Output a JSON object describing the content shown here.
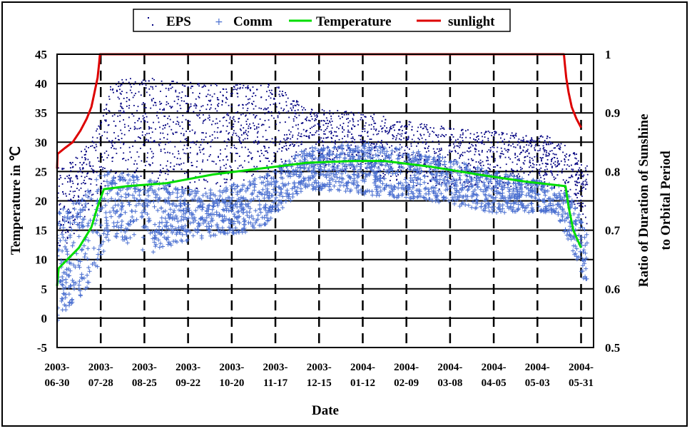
{
  "chart_data": {
    "type": "scatter",
    "xlabel": "Date",
    "ylabel_left": "Temperature in ℃",
    "ylabel_right_line1": "Ratio of Duration of Sunshine",
    "ylabel_right_line2": "to Orbital Period",
    "ylim_left": [
      -5,
      45
    ],
    "ylim_right": [
      0.5,
      1.0
    ],
    "yticks_left": [
      -5,
      0,
      5,
      10,
      15,
      20,
      25,
      30,
      35,
      40,
      45
    ],
    "yticks_right": [
      "0.5",
      "0.6",
      "0.7",
      "0.8",
      "0.9",
      "1"
    ],
    "x_start": "2003-06-30",
    "x_end": "2004-06-08",
    "xticks": [
      {
        "line1": "2003-",
        "line2": "06-30",
        "day": 0
      },
      {
        "line1": "2003-",
        "line2": "07-28",
        "day": 28
      },
      {
        "line1": "2003-",
        "line2": "08-25",
        "day": 56
      },
      {
        "line1": "2003-",
        "line2": "09-22",
        "day": 84
      },
      {
        "line1": "2003-",
        "line2": "10-20",
        "day": 112
      },
      {
        "line1": "2003-",
        "line2": "11-17",
        "day": 140
      },
      {
        "line1": "2003-",
        "line2": "12-15",
        "day": 168
      },
      {
        "line1": "2004-",
        "line2": "01-12",
        "day": 196
      },
      {
        "line1": "2004-",
        "line2": "02-09",
        "day": 224
      },
      {
        "line1": "2004-",
        "line2": "03-08",
        "day": 252
      },
      {
        "line1": "2004-",
        "line2": "04-05",
        "day": 280
      },
      {
        "line1": "2004-",
        "line2": "05-03",
        "day": 308
      },
      {
        "line1": "2004-",
        "line2": "05-31",
        "day": 336
      }
    ],
    "grid": true,
    "legend_position": "top-center",
    "series": [
      {
        "name": "EPS",
        "kind": "scatter-dots",
        "color": "#000080",
        "envelope": [
          {
            "day": 0,
            "low": 10,
            "high": 26
          },
          {
            "day": 10,
            "low": 14,
            "high": 27
          },
          {
            "day": 20,
            "low": 18,
            "high": 30
          },
          {
            "day": 28,
            "low": 20,
            "high": 34
          },
          {
            "day": 35,
            "low": 24,
            "high": 41
          },
          {
            "day": 60,
            "low": 22,
            "high": 41
          },
          {
            "day": 100,
            "low": 22,
            "high": 40
          },
          {
            "day": 140,
            "low": 24,
            "high": 40
          },
          {
            "day": 160,
            "low": 26,
            "high": 36
          },
          {
            "day": 200,
            "low": 24,
            "high": 35
          },
          {
            "day": 240,
            "low": 22,
            "high": 33
          },
          {
            "day": 280,
            "low": 22,
            "high": 32
          },
          {
            "day": 320,
            "low": 22,
            "high": 31
          },
          {
            "day": 333,
            "low": 18,
            "high": 28
          },
          {
            "day": 340,
            "low": 16,
            "high": 26
          }
        ]
      },
      {
        "name": "Comm",
        "kind": "scatter-plus",
        "color": "#4a6fd0",
        "envelope": [
          {
            "day": 0,
            "low": -1,
            "high": 18
          },
          {
            "day": 10,
            "low": 2,
            "high": 20
          },
          {
            "day": 20,
            "low": 5,
            "high": 22
          },
          {
            "day": 28,
            "low": 10,
            "high": 25
          },
          {
            "day": 35,
            "low": 14,
            "high": 25
          },
          {
            "day": 60,
            "low": 11,
            "high": 24
          },
          {
            "day": 80,
            "low": 13,
            "high": 22
          },
          {
            "day": 100,
            "low": 14,
            "high": 22
          },
          {
            "day": 130,
            "low": 15,
            "high": 24
          },
          {
            "day": 160,
            "low": 22,
            "high": 29
          },
          {
            "day": 200,
            "low": 21,
            "high": 30
          },
          {
            "day": 240,
            "low": 20,
            "high": 28
          },
          {
            "day": 280,
            "low": 18,
            "high": 25
          },
          {
            "day": 320,
            "low": 18,
            "high": 23
          },
          {
            "day": 333,
            "low": 10,
            "high": 20
          },
          {
            "day": 340,
            "low": 5,
            "high": 14
          }
        ]
      },
      {
        "name": "Temperature",
        "kind": "line",
        "axis": "left",
        "color": "#00dd00",
        "points": [
          {
            "day": 0,
            "y": 5.5
          },
          {
            "day": 1,
            "y": 8.5
          },
          {
            "day": 14,
            "y": 12
          },
          {
            "day": 22,
            "y": 15.5
          },
          {
            "day": 26,
            "y": 19
          },
          {
            "day": 30,
            "y": 22
          },
          {
            "day": 45,
            "y": 22.5
          },
          {
            "day": 70,
            "y": 23
          },
          {
            "day": 100,
            "y": 24.5
          },
          {
            "day": 130,
            "y": 25.5
          },
          {
            "day": 160,
            "y": 26.5
          },
          {
            "day": 190,
            "y": 26.8
          },
          {
            "day": 210,
            "y": 26.8
          },
          {
            "day": 240,
            "y": 25.8
          },
          {
            "day": 270,
            "y": 24.5
          },
          {
            "day": 300,
            "y": 23.3
          },
          {
            "day": 326,
            "y": 22.5
          },
          {
            "day": 328,
            "y": 19
          },
          {
            "day": 331,
            "y": 15
          },
          {
            "day": 336,
            "y": 12
          }
        ]
      },
      {
        "name": "sunlight",
        "kind": "line",
        "axis": "right",
        "color": "#dd0000",
        "points": [
          {
            "day": 0,
            "y": 0.805
          },
          {
            "day": 0.3,
            "y": 0.83
          },
          {
            "day": 5,
            "y": 0.84
          },
          {
            "day": 10,
            "y": 0.85
          },
          {
            "day": 15,
            "y": 0.87
          },
          {
            "day": 19,
            "y": 0.89
          },
          {
            "day": 22,
            "y": 0.91
          },
          {
            "day": 24,
            "y": 0.935
          },
          {
            "day": 26,
            "y": 0.96
          },
          {
            "day": 27,
            "y": 0.985
          },
          {
            "day": 27.5,
            "y": 1.0
          },
          {
            "day": 325,
            "y": 1.0
          },
          {
            "day": 325.5,
            "y": 0.985
          },
          {
            "day": 326.5,
            "y": 0.96
          },
          {
            "day": 328,
            "y": 0.935
          },
          {
            "day": 330,
            "y": 0.91
          },
          {
            "day": 333,
            "y": 0.89
          },
          {
            "day": 336,
            "y": 0.875
          }
        ]
      }
    ]
  }
}
